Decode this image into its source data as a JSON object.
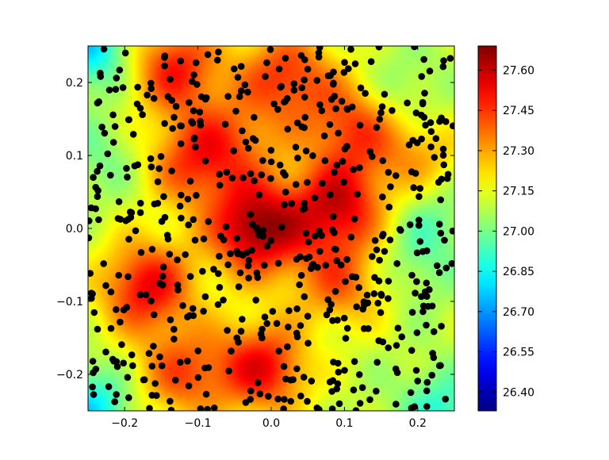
{
  "chart_data": {
    "type": "heatmap",
    "title": "",
    "xlabel": "",
    "ylabel": "",
    "xlim": [
      -0.25,
      0.25
    ],
    "ylim": [
      -0.25,
      0.25
    ],
    "x_ticks": [
      -0.2,
      -0.1,
      0.0,
      0.1,
      0.2
    ],
    "x_tick_labels": [
      "−0.2",
      "−0.1",
      "0.0",
      "0.1",
      "0.2"
    ],
    "y_ticks": [
      0.2,
      0.1,
      0.0,
      -0.1,
      -0.2
    ],
    "y_tick_labels": [
      "0.2",
      "0.1",
      "0.0",
      "−0.1",
      "−0.2"
    ],
    "colormap": "jet",
    "colorbar": {
      "range": [
        26.33,
        27.69
      ],
      "ticks": [
        27.6,
        27.45,
        27.3,
        27.15,
        27.0,
        26.85,
        26.7,
        26.55,
        26.4
      ],
      "tick_labels": [
        "27.60",
        "27.45",
        "27.30",
        "27.15",
        "27.00",
        "26.85",
        "26.70",
        "26.55",
        "26.40"
      ]
    },
    "field_peaks": [
      {
        "x": -0.02,
        "y": 0.0,
        "value": 27.66
      },
      {
        "x": 0.09,
        "y": 0.03,
        "value": 27.55
      },
      {
        "x": -0.17,
        "y": -0.08,
        "value": 27.53
      },
      {
        "x": -0.01,
        "y": -0.19,
        "value": 27.52
      },
      {
        "x": -0.13,
        "y": 0.22,
        "value": 27.48
      },
      {
        "x": 0.02,
        "y": 0.21,
        "value": 27.45
      },
      {
        "x": 0.11,
        "y": 0.14,
        "value": 27.42
      },
      {
        "x": -0.11,
        "y": 0.09,
        "value": 27.4
      },
      {
        "x": -0.12,
        "y": -0.2,
        "value": 27.4
      },
      {
        "x": 0.09,
        "y": -0.08,
        "value": 27.38
      },
      {
        "x": -0.05,
        "y": 0.12,
        "value": 27.32
      },
      {
        "x": 0.2,
        "y": 0.1,
        "value": 27.3
      }
    ],
    "field_troughs": [
      {
        "x": -0.25,
        "y": 0.25,
        "value": 26.78
      },
      {
        "x": -0.25,
        "y": -0.25,
        "value": 26.8
      },
      {
        "x": 0.23,
        "y": -0.25,
        "value": 26.9
      },
      {
        "x": 0.18,
        "y": 0.18,
        "value": 26.98
      },
      {
        "x": 0.2,
        "y": -0.05,
        "value": 27.0
      },
      {
        "x": -0.23,
        "y": 0.1,
        "value": 27.0
      },
      {
        "x": 0.22,
        "y": 0.02,
        "value": 26.98
      },
      {
        "x": 0.06,
        "y": -0.14,
        "value": 27.05
      }
    ],
    "base_value": 27.1,
    "scatter_points": {
      "marker": "black filled circle",
      "count_shown": 600,
      "x": [],
      "y": []
    }
  }
}
